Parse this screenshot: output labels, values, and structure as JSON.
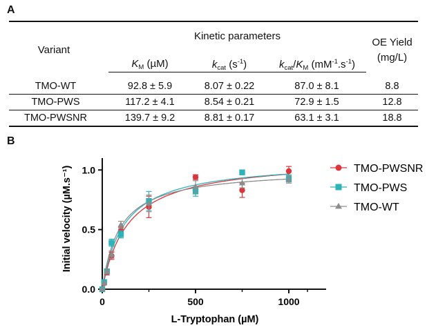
{
  "panels": {
    "a": "A",
    "b": "B"
  },
  "table": {
    "header": {
      "variant": "Variant",
      "group": "Kinetic parameters",
      "km_sym": "K",
      "km_sub": "M",
      "km_unit": " (µM)",
      "kcat_sym": "k",
      "kcat_sub": "cat",
      "kcat_unit_pre": " (s",
      "kcat_unit_sup": "-1",
      "kcat_unit_post": ")",
      "ratio_k": "k",
      "ratio_cat": "cat",
      "ratio_slash": "/",
      "ratio_K": "K",
      "ratio_M": "M",
      "ratio_unit_pre": " (mM",
      "ratio_unit_sup1": "-1",
      "ratio_unit_mid": ".s",
      "ratio_unit_sup2": "-1",
      "ratio_unit_post": ")",
      "oe_line1": "OE Yield",
      "oe_line2": "(mg/L)"
    },
    "rows": [
      {
        "variant": "TMO-WT",
        "km": "92.8 ± 5.9",
        "kcat": "8.07 ± 0.22",
        "ratio": "87.0 ± 8.1",
        "oe": "8.8"
      },
      {
        "variant": "TMO-PWS",
        "km": "117.2 ± 4.1",
        "kcat": "8.54 ± 0.21",
        "ratio": "72.9 ± 1.5",
        "oe": "12.8"
      },
      {
        "variant": "TMO-PWSNR",
        "km": "139.7 ± 9.2",
        "kcat": "8.81 ± 0.17",
        "ratio": "63.1 ± 3.1",
        "oe": "18.8"
      }
    ]
  },
  "chart_data": {
    "type": "scatter",
    "xlabel": "L-Tryptophan (µM)",
    "ylabel": "Initial velocity (µM.s⁻¹)",
    "xlim": [
      0,
      1200
    ],
    "ylim": [
      0,
      1.1
    ],
    "xticks": [
      0,
      500,
      1000
    ],
    "xticks_minor": [
      250,
      750,
      1100
    ],
    "yticks": [
      0.0,
      0.5,
      1.0
    ],
    "grid": false,
    "legend_position": "right",
    "series": [
      {
        "name": "TMO-PWSNR",
        "color": "#d9363e",
        "marker": "circle",
        "vmax": 1.1,
        "km": 139.7,
        "points": [
          {
            "x": 0,
            "y": 0.0,
            "err": 0.0
          },
          {
            "x": 10,
            "y": 0.05,
            "err": 0.01
          },
          {
            "x": 25,
            "y": 0.14,
            "err": 0.02
          },
          {
            "x": 50,
            "y": 0.28,
            "err": 0.03
          },
          {
            "x": 100,
            "y": 0.49,
            "err": 0.03
          },
          {
            "x": 250,
            "y": 0.69,
            "err": 0.09
          },
          {
            "x": 500,
            "y": 0.94,
            "err": 0.02
          },
          {
            "x": 750,
            "y": 0.83,
            "err": 0.06
          },
          {
            "x": 1000,
            "y": 0.99,
            "err": 0.04
          }
        ]
      },
      {
        "name": "TMO-PWS",
        "color": "#2eb3b8",
        "marker": "square",
        "vmax": 1.08,
        "km": 117.2,
        "points": [
          {
            "x": 0,
            "y": 0.0,
            "err": 0.0
          },
          {
            "x": 10,
            "y": 0.06,
            "err": 0.01
          },
          {
            "x": 25,
            "y": 0.15,
            "err": 0.02
          },
          {
            "x": 50,
            "y": 0.39,
            "err": 0.03
          },
          {
            "x": 100,
            "y": 0.46,
            "err": 0.03
          },
          {
            "x": 250,
            "y": 0.74,
            "err": 0.08
          },
          {
            "x": 500,
            "y": 0.82,
            "err": 0.04
          },
          {
            "x": 750,
            "y": 0.98,
            "err": 0.02
          },
          {
            "x": 1000,
            "y": 0.93,
            "err": 0.03
          }
        ]
      },
      {
        "name": "TMO-WT",
        "color": "#8c8c8c",
        "marker": "triangle",
        "vmax": 1.01,
        "km": 92.8,
        "points": [
          {
            "x": 0,
            "y": 0.0,
            "err": 0.0
          },
          {
            "x": 10,
            "y": 0.05,
            "err": 0.01
          },
          {
            "x": 25,
            "y": 0.15,
            "err": 0.02
          },
          {
            "x": 50,
            "y": 0.29,
            "err": 0.03
          },
          {
            "x": 100,
            "y": 0.54,
            "err": 0.03
          },
          {
            "x": 250,
            "y": 0.72,
            "err": 0.07
          },
          {
            "x": 500,
            "y": 0.86,
            "err": 0.05
          },
          {
            "x": 750,
            "y": 0.89,
            "err": 0.04
          },
          {
            "x": 1000,
            "y": 0.92,
            "err": 0.03
          }
        ]
      }
    ]
  }
}
